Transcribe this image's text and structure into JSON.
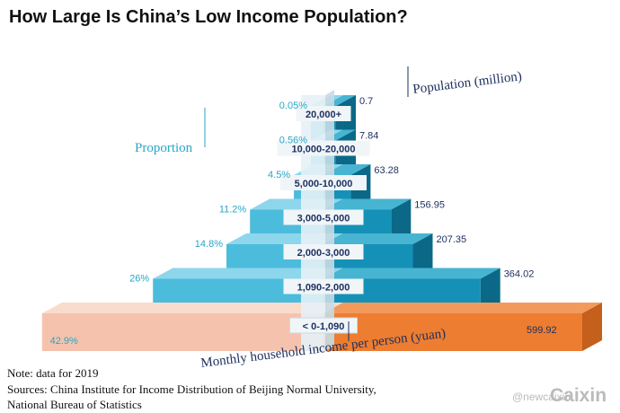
{
  "title": "How Large Is China’s Low Income Population?",
  "chart_data": {
    "type": "bar",
    "subtype": "population-pyramid",
    "categories": [
      "< 0-1,090",
      "1,090-2,000",
      "2,000-3,000",
      "3,000-5,000",
      "5,000-10,000",
      "10,000-20,000",
      "20,000+"
    ],
    "series": [
      {
        "name": "Proportion",
        "values": [
          42.9,
          26,
          14.8,
          11.2,
          4.5,
          0.56,
          0.05
        ],
        "labels": [
          "42.9%",
          "26%",
          "14.8%",
          "11.2%",
          "4.5%",
          "0.56%",
          "0.05%"
        ]
      },
      {
        "name": "Population (million)",
        "values": [
          599.92,
          364.02,
          207.35,
          156.95,
          63.28,
          7.84,
          0.7
        ],
        "labels": [
          "599.92",
          "364.02",
          "207.35",
          "156.95",
          "63.28",
          "7.84",
          "0.7"
        ]
      }
    ],
    "left_label": "Proportion",
    "right_label": "Population (million)",
    "xlabel": "Monthly household income per person (yuan)",
    "highlight_category": "< 0-1,090"
  },
  "colors": {
    "left_front": "#4cbcdc",
    "left_top": "#8ed6ec",
    "left_side": "#2b8fb0",
    "right_front": "#1591b7",
    "right_top": "#47b4d2",
    "right_side": "#0b6987",
    "low_left_front": "#f5c3ad",
    "low_left_top": "#f9dccd",
    "low_right_front": "#ed7d31",
    "low_right_top": "#f29a5c",
    "low_right_side": "#c45f1c",
    "center": "#e6f1f6",
    "center_edge": "#c7dbe4",
    "category_box": "#f0f5f8",
    "percent_text": "#2aa6c6",
    "population_text": "#1d2f5e"
  },
  "note": "Note: data for 2019",
  "sources": "Sources: China Institute for Income Distribution of Beijing Normal University,",
  "sources_line2": "National Bureau of Statistics",
  "watermark": {
    "handle": "@newcaixin",
    "brand": "Caixin"
  }
}
